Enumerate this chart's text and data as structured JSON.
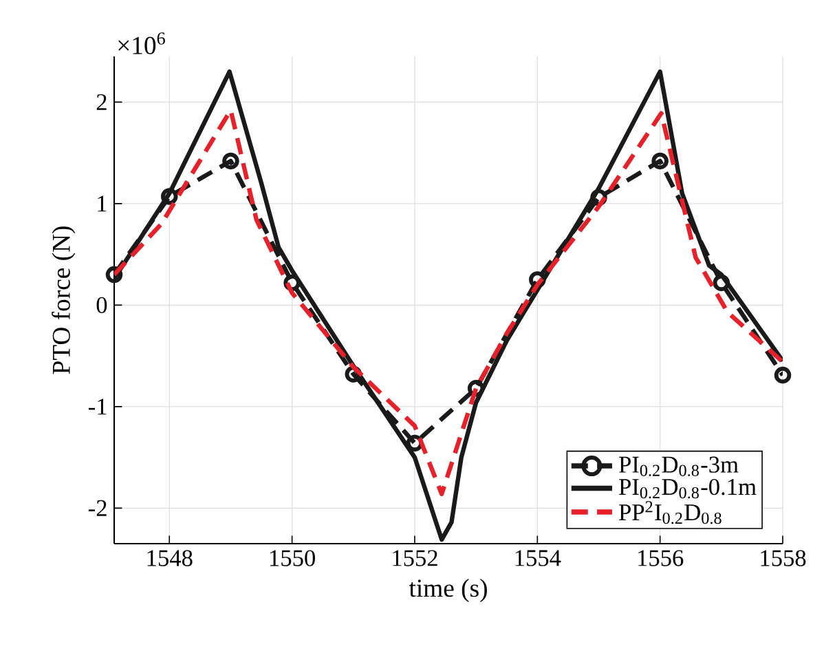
{
  "chart_data": {
    "type": "line",
    "xlabel": "time (s)",
    "ylabel": "PTO force (N)",
    "annotations": [
      "×10$^{6}$"
    ],
    "xlim": [
      1547.1,
      1558
    ],
    "ylim": [
      -2.35,
      2.45
    ],
    "xticks": [
      1548,
      1550,
      1552,
      1554,
      1556,
      1558
    ],
    "yticks": [
      -2,
      -1,
      0,
      1,
      2
    ],
    "grid": true,
    "legend": "bottom right",
    "series": [
      {
        "name": "PI$_{0.2}$D$_{0.8}$-3m",
        "color": "#1a1a1a",
        "marker": "circle",
        "line_style": "dashed",
        "x": [
          1547.1,
          1548,
          1549,
          1550,
          1551,
          1552,
          1553,
          1554,
          1555,
          1556,
          1557,
          1558
        ],
        "values": [
          0.3,
          1.07,
          1.42,
          0.22,
          -0.68,
          -1.36,
          -0.82,
          0.25,
          1.06,
          1.42,
          0.22,
          -0.69
        ]
      },
      {
        "name": "PI$_{0.2}$D$_{0.8}$-0.1m",
        "color": "#1a1a1a",
        "marker": "none",
        "line_style": "solid",
        "x": [
          1547.1,
          1548,
          1548.98,
          1549.5,
          1549.78,
          1550,
          1551,
          1552,
          1552.44,
          1552.6,
          1552.76,
          1553,
          1553.5,
          1554,
          1555,
          1556,
          1556.36,
          1556.8,
          1557,
          1558
        ],
        "values": [
          0.26,
          1.1,
          2.3,
          1.2,
          0.57,
          0.34,
          -0.6,
          -1.5,
          -2.31,
          -2.14,
          -1.5,
          -0.96,
          -0.35,
          0.15,
          1.15,
          2.3,
          1.1,
          0.39,
          0.3,
          -0.55
        ]
      },
      {
        "name": "PP$^{2}$I$_{0.2}$D$_{0.8}$",
        "color": "#e8202a",
        "marker": "none",
        "line_style": "dashed",
        "x": [
          1547.1,
          1547.87,
          1549,
          1549.42,
          1550,
          1551,
          1552,
          1552.44,
          1553,
          1553.5,
          1554,
          1555,
          1556.02,
          1556.58,
          1557.1,
          1558
        ],
        "values": [
          0.3,
          0.8,
          1.92,
          0.84,
          0.12,
          -0.61,
          -1.19,
          -1.86,
          -0.82,
          -0.28,
          0.2,
          0.97,
          1.89,
          0.47,
          -0.07,
          -0.56
        ]
      }
    ]
  }
}
